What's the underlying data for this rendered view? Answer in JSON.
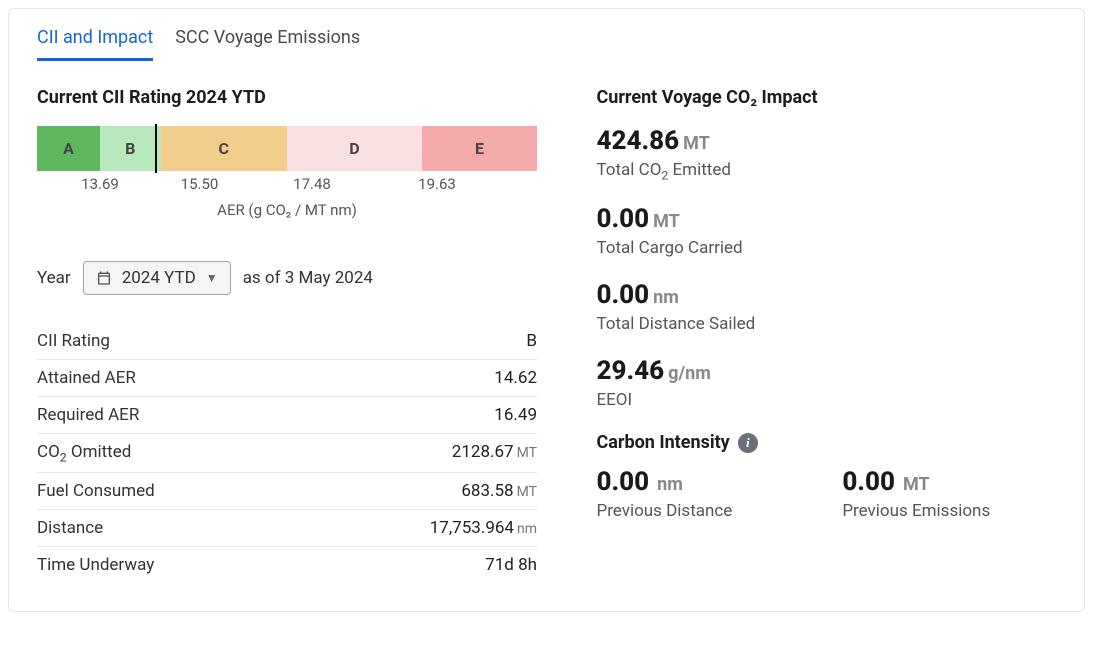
{
  "tabs": {
    "cii": "CII and Impact",
    "scc": "SCC Voyage Emissions"
  },
  "left": {
    "heading": "Current CII Rating 2024 YTD",
    "rating_bar": {
      "segments": [
        {
          "label": "A",
          "width_pct": 12.6,
          "color": "#5fb760"
        },
        {
          "label": "B",
          "width_pct": 12.1,
          "color": "#b9e8bf"
        },
        {
          "label": "C",
          "width_pct": 25.3,
          "color": "#f3ce8a"
        },
        {
          "label": "D",
          "width_pct": 27.0,
          "color": "#f8dfe0"
        },
        {
          "label": "E",
          "width_pct": 23.0,
          "color": "#f4aaab"
        }
      ],
      "marker_pct": 23.5,
      "ticks": [
        {
          "pos_pct": 12.6,
          "label": "13.69"
        },
        {
          "pos_pct": 32.5,
          "label": "15.50"
        },
        {
          "pos_pct": 55.0,
          "label": "17.48"
        },
        {
          "pos_pct": 80.0,
          "label": "19.63"
        }
      ],
      "axis_label": "AER (g CO₂ / MT nm)"
    },
    "year_picker": {
      "label": "Year",
      "value": "2024 YTD",
      "as_of": "as of 3 May 2024"
    },
    "rows": [
      {
        "k": "CII Rating",
        "v": "B",
        "unit": ""
      },
      {
        "k": "Attained AER",
        "v": "14.62",
        "unit": ""
      },
      {
        "k": "Required AER",
        "v": "16.49",
        "unit": ""
      },
      {
        "k": "CO₂ Omitted",
        "v": "2128.67",
        "unit": "MT"
      },
      {
        "k": "Fuel Consumed",
        "v": "683.58",
        "unit": "MT"
      },
      {
        "k": "Distance",
        "v": "17,753.964",
        "unit": "nm"
      },
      {
        "k": "Time Underway",
        "v": "71d 8h",
        "unit": ""
      }
    ]
  },
  "right": {
    "heading": "Current Voyage CO₂ Impact",
    "metrics": [
      {
        "value": "424.86",
        "unit": "MT",
        "desc": "Total CO₂ Emitted"
      },
      {
        "value": "0.00",
        "unit": "MT",
        "desc": "Total Cargo Carried"
      },
      {
        "value": "0.00",
        "unit": "nm",
        "desc": "Total Distance Sailed"
      },
      {
        "value": "29.46",
        "unit": "g/nm",
        "desc": "EEOI"
      }
    ],
    "carbon_intensity": {
      "heading": "Carbon Intensity",
      "prev_distance": {
        "value": "0.00",
        "unit": "nm",
        "desc": "Previous Distance"
      },
      "prev_emissions": {
        "value": "0.00",
        "unit": "MT",
        "desc": "Previous Emissions"
      }
    }
  }
}
